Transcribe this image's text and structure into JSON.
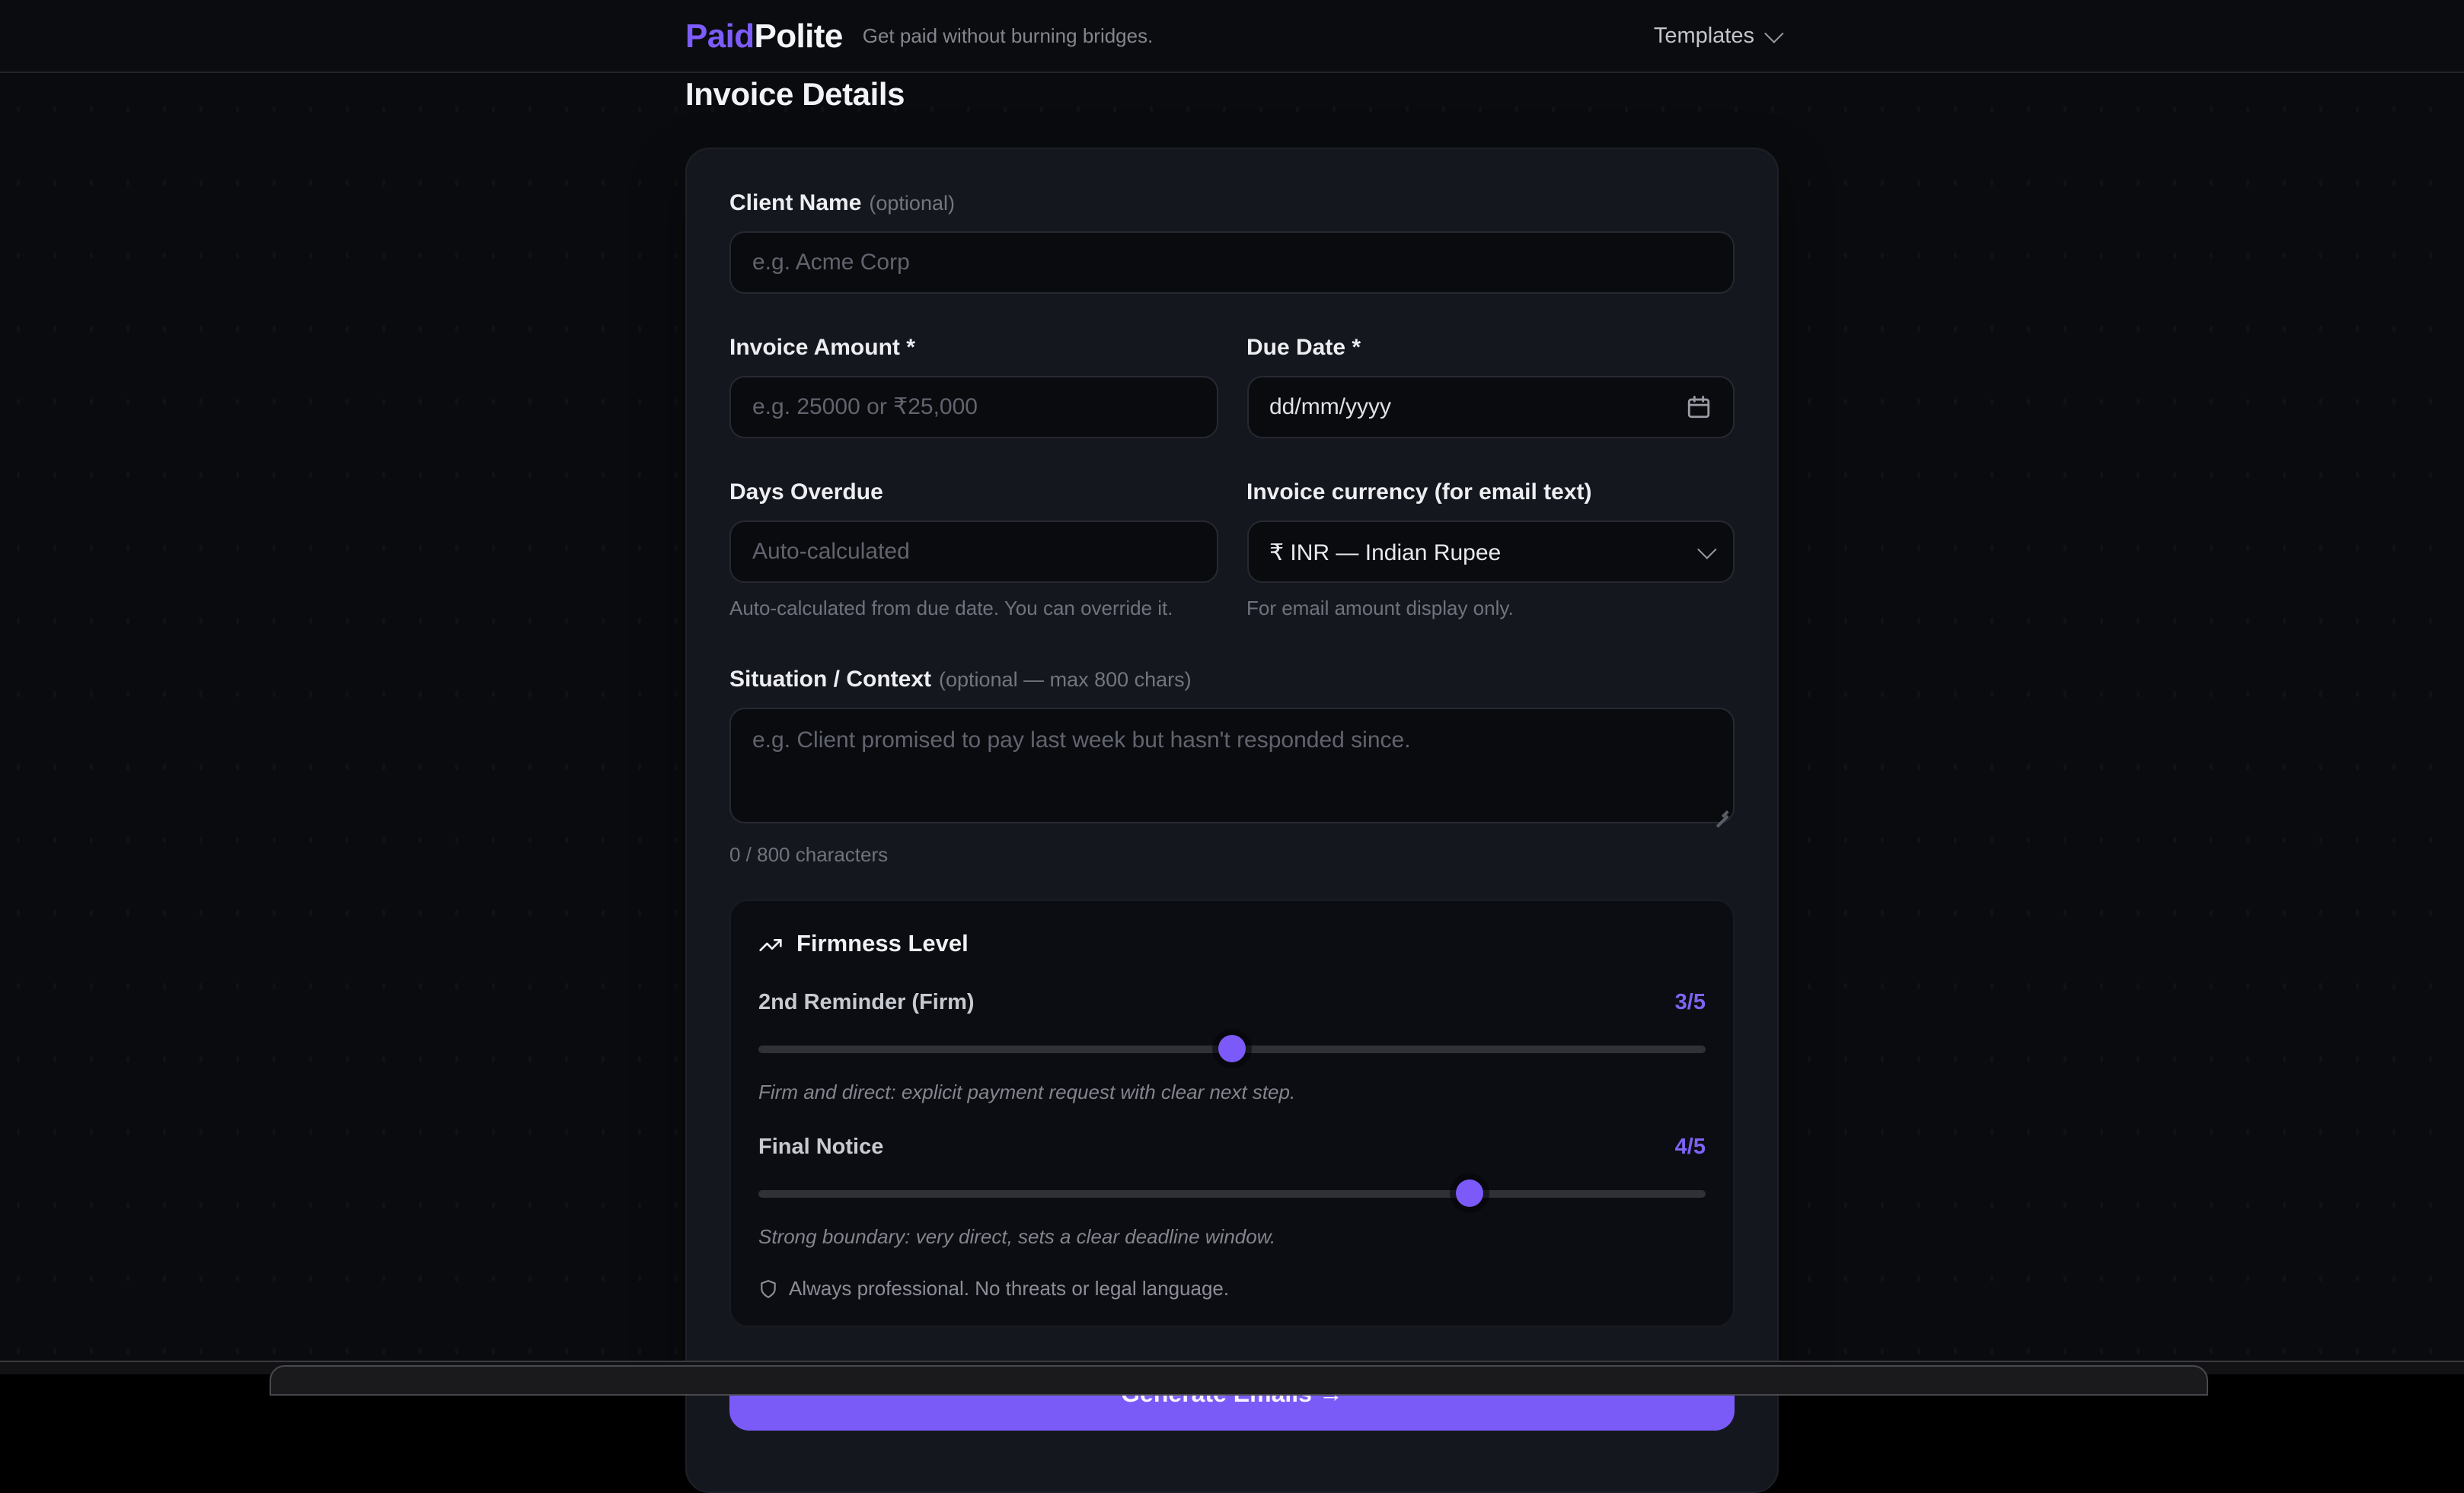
{
  "header": {
    "brand_first": "Paid",
    "brand_second": "Polite",
    "tagline": "Get paid without burning bridges.",
    "templates_label": "Templates"
  },
  "page": {
    "title": "Invoice Details"
  },
  "form": {
    "client_name": {
      "label": "Client Name",
      "hint": "(optional)",
      "placeholder": "e.g. Acme Corp"
    },
    "invoice_amount": {
      "label": "Invoice Amount *",
      "placeholder": "e.g. 25000 or ₹25,000"
    },
    "due_date": {
      "label": "Due Date *",
      "value": "dd/mm/yyyy"
    },
    "days_overdue": {
      "label": "Days Overdue",
      "placeholder": "Auto-calculated",
      "helper": "Auto-calculated from due date. You can override it."
    },
    "currency": {
      "label": "Invoice currency (for email text)",
      "selected": "₹ INR — Indian Rupee",
      "helper": "For email amount display only."
    },
    "situation": {
      "label": "Situation / Context",
      "hint": "(optional — max 800 chars)",
      "placeholder": "e.g. Client promised to pay last week but hasn't responded since.",
      "counter": "0 / 800 characters"
    },
    "firmness": {
      "title": "Firmness Level",
      "sliders": [
        {
          "label": "2nd Reminder (Firm)",
          "value_label": "3/5",
          "value": 3,
          "min": 1,
          "max": 5,
          "description": "Firm and direct: explicit payment request with clear next step."
        },
        {
          "label": "Final Notice",
          "value_label": "4/5",
          "value": 4,
          "min": 1,
          "max": 5,
          "description": "Strong boundary: very direct, sets a clear deadline window."
        }
      ],
      "note": "Always professional. No threats or legal language."
    },
    "submit_label": "Generate Emails →"
  },
  "colors": {
    "accent": "#7c5cfa",
    "page_bg": "#0a0b0e",
    "card_bg": "#15171e"
  }
}
